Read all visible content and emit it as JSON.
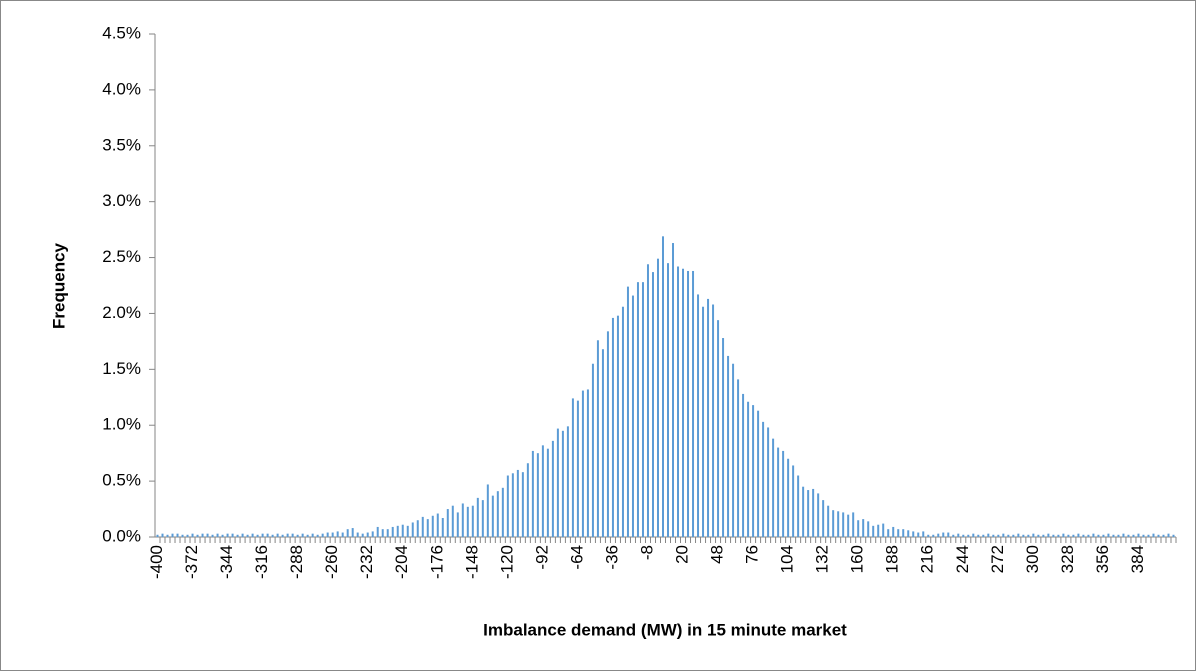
{
  "chart_data": {
    "type": "bar",
    "y_label": "Frequency",
    "x_label": "Imbalance  demand (MW) in 15 minute market",
    "color": "#5b9bd5",
    "categories": [
      "-400",
      null,
      null,
      null,
      null,
      null,
      null,
      "-372",
      null,
      null,
      null,
      null,
      null,
      null,
      "-344",
      null,
      null,
      null,
      null,
      null,
      null,
      "-316",
      null,
      null,
      null,
      null,
      null,
      null,
      "-288",
      null,
      null,
      null,
      null,
      null,
      null,
      "-260",
      null,
      null,
      null,
      null,
      null,
      null,
      "-232",
      null,
      null,
      null,
      null,
      null,
      null,
      "-204",
      null,
      null,
      null,
      null,
      null,
      null,
      "-176",
      null,
      null,
      null,
      null,
      null,
      null,
      "-148",
      null,
      null,
      null,
      null,
      null,
      null,
      "-120",
      null,
      null,
      null,
      null,
      null,
      null,
      "-92",
      null,
      null,
      null,
      null,
      null,
      null,
      "-64",
      null,
      null,
      null,
      null,
      null,
      null,
      "-36",
      null,
      null,
      null,
      null,
      null,
      null,
      "-8",
      null,
      null,
      null,
      null,
      null,
      null,
      "20",
      null,
      null,
      null,
      null,
      null,
      null,
      "48",
      null,
      null,
      null,
      null,
      null,
      null,
      "76",
      null,
      null,
      null,
      null,
      null,
      null,
      "104",
      null,
      null,
      null,
      null,
      null,
      null,
      "132",
      null,
      null,
      null,
      null,
      null,
      null,
      "160",
      null,
      null,
      null,
      null,
      null,
      null,
      "188",
      null,
      null,
      null,
      null,
      null,
      null,
      "216",
      null,
      null,
      null,
      null,
      null,
      null,
      "244",
      null,
      null,
      null,
      null,
      null,
      null,
      "272",
      null,
      null,
      null,
      null,
      null,
      null,
      "300",
      null,
      null,
      null,
      null,
      null,
      null,
      "328",
      null,
      null,
      null,
      null,
      null,
      null,
      "356",
      null,
      null,
      null,
      null,
      null,
      null,
      "384",
      null,
      null,
      null,
      null,
      null,
      null,
      null
    ],
    "values": [
      0.02,
      0.03,
      0.02,
      0.03,
      0.03,
      0.02,
      0.02,
      0.03,
      0.02,
      0.03,
      0.03,
      0.02,
      0.03,
      0.02,
      0.03,
      0.03,
      0.02,
      0.03,
      0.02,
      0.03,
      0.02,
      0.03,
      0.03,
      0.02,
      0.03,
      0.02,
      0.03,
      0.03,
      0.02,
      0.03,
      0.02,
      0.03,
      0.02,
      0.03,
      0.04,
      0.04,
      0.05,
      0.04,
      0.07,
      0.08,
      0.04,
      0.03,
      0.04,
      0.05,
      0.09,
      0.07,
      0.07,
      0.09,
      0.1,
      0.11,
      0.1,
      0.13,
      0.15,
      0.18,
      0.16,
      0.19,
      0.21,
      0.17,
      0.25,
      0.28,
      0.22,
      0.3,
      0.27,
      0.28,
      0.35,
      0.33,
      0.47,
      0.37,
      0.41,
      0.44,
      0.55,
      0.57,
      0.6,
      0.58,
      0.66,
      0.77,
      0.75,
      0.82,
      0.79,
      0.86,
      0.97,
      0.95,
      0.99,
      1.24,
      1.22,
      1.31,
      1.32,
      1.55,
      1.76,
      1.68,
      1.84,
      1.96,
      1.98,
      2.06,
      2.24,
      2.16,
      2.28,
      2.28,
      2.44,
      2.37,
      2.49,
      2.69,
      2.45,
      2.63,
      2.42,
      2.4,
      2.38,
      2.38,
      2.17,
      2.06,
      2.13,
      2.08,
      1.94,
      1.78,
      1.62,
      1.55,
      1.41,
      1.28,
      1.21,
      1.18,
      1.13,
      1.03,
      0.98,
      0.88,
      0.8,
      0.77,
      0.7,
      0.64,
      0.55,
      0.45,
      0.42,
      0.43,
      0.39,
      0.33,
      0.28,
      0.24,
      0.23,
      0.22,
      0.2,
      0.22,
      0.15,
      0.16,
      0.14,
      0.1,
      0.11,
      0.12,
      0.07,
      0.09,
      0.07,
      0.07,
      0.06,
      0.05,
      0.04,
      0.05,
      0.02,
      0.02,
      0.03,
      0.04,
      0.04,
      0.02,
      0.03,
      0.02,
      0.02,
      0.03,
      0.02,
      0.02,
      0.03,
      0.02,
      0.02,
      0.03,
      0.02,
      0.02,
      0.03,
      0.02,
      0.02,
      0.03,
      0.02,
      0.02,
      0.03,
      0.02,
      0.02,
      0.03,
      0.02,
      0.02,
      0.03,
      0.02,
      0.02,
      0.03,
      0.02,
      0.02,
      0.03,
      0.02,
      0.02,
      0.03,
      0.02,
      0.02,
      0.03,
      0.02,
      0.02,
      0.03,
      0.02,
      0.02,
      0.03,
      0.02
    ],
    "ylim": [
      0,
      4.5
    ],
    "yticks": [
      {
        "value": 0,
        "label": "0.0%"
      },
      {
        "value": 0.5,
        "label": "0.5%"
      },
      {
        "value": 1,
        "label": "1.0%"
      },
      {
        "value": 1.5,
        "label": "1.5%"
      },
      {
        "value": 2,
        "label": "2.0%"
      },
      {
        "value": 2.5,
        "label": "2.5%"
      },
      {
        "value": 3,
        "label": "3.0%"
      },
      {
        "value": 3.5,
        "label": "3.5%"
      },
      {
        "value": 4,
        "label": "4.0%"
      },
      {
        "value": 4.5,
        "label": "4.5%"
      }
    ],
    "grid": false
  }
}
